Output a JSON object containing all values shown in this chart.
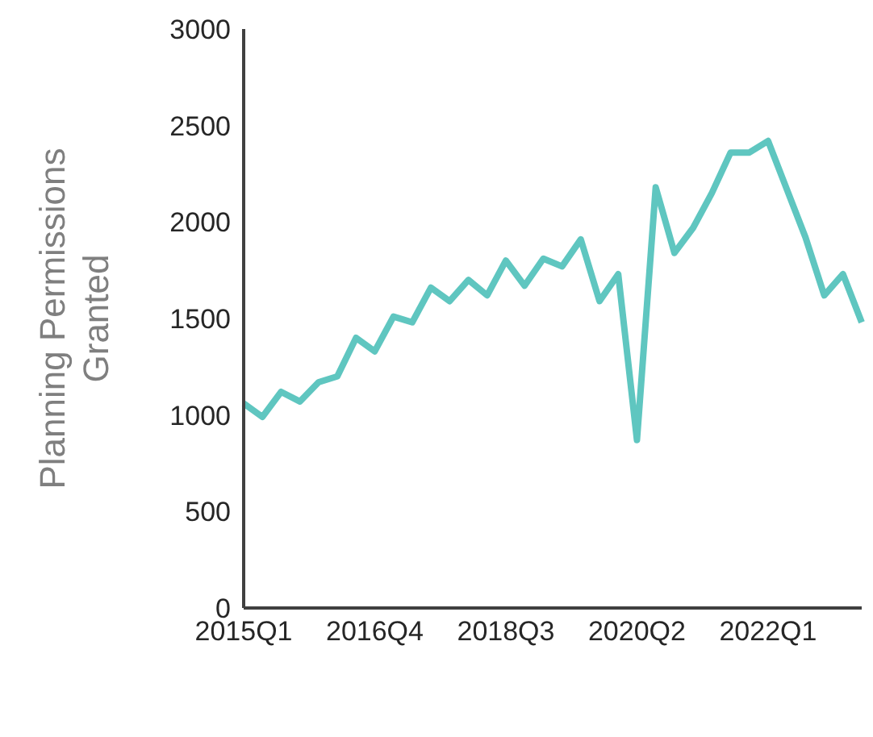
{
  "chart_data": {
    "type": "line",
    "ylabel": "Planning Permissions Granted",
    "categories": [
      "2015Q1",
      null,
      null,
      null,
      null,
      null,
      null,
      "2016Q4",
      null,
      null,
      null,
      null,
      null,
      null,
      "2018Q3",
      null,
      null,
      null,
      null,
      null,
      null,
      "2020Q2",
      null,
      null,
      null,
      null,
      null,
      null,
      "2022Q1",
      null,
      null,
      null,
      null,
      null
    ],
    "series": [
      {
        "color": "#5fc6c0",
        "values": [
          1060,
          990,
          1120,
          1070,
          1170,
          1200,
          1400,
          1330,
          1510,
          1480,
          1660,
          1590,
          1700,
          1620,
          1800,
          1670,
          1810,
          1770,
          1910,
          1590,
          1730,
          870,
          2180,
          1840,
          1970,
          2150,
          2360,
          2360,
          2420,
          2170,
          1920,
          1620,
          1730,
          1480
        ]
      }
    ],
    "ylim": [
      0,
      3000
    ],
    "yticks": [
      0,
      500,
      1000,
      1500,
      2000,
      2500,
      3000
    ],
    "grid": false,
    "legend": false,
    "marker": "none",
    "line_style": "solid"
  }
}
